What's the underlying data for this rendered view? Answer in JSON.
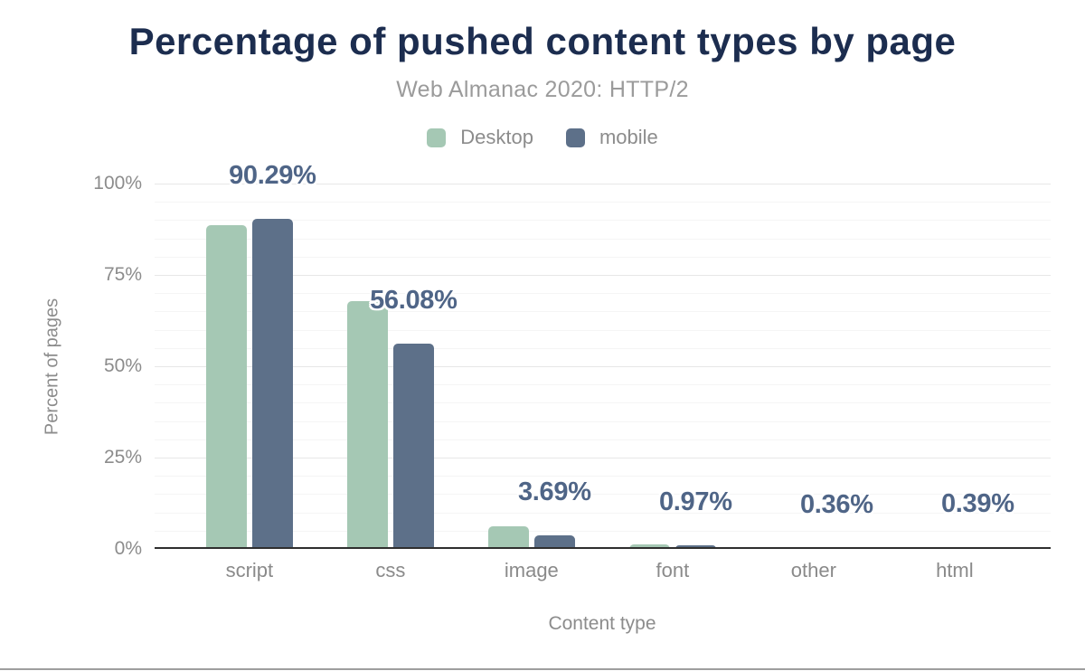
{
  "title": "Percentage of pushed content types by page",
  "subtitle": "Web Almanac 2020: HTTP/2",
  "legend": [
    {
      "label": "Desktop",
      "color": "#a5c8b4"
    },
    {
      "label": "mobile",
      "color": "#5d7089"
    }
  ],
  "axes": {
    "y_title": "Percent of pages",
    "x_title": "Content type",
    "y_ticks": [
      "0%",
      "25%",
      "50%",
      "75%",
      "100%"
    ]
  },
  "chart_data": {
    "type": "bar",
    "categories": [
      "script",
      "css",
      "image",
      "font",
      "other",
      "html"
    ],
    "series": [
      {
        "name": "Desktop",
        "color": "#a5c8b4",
        "values": [
          88.7,
          67.7,
          6.1,
          1.3,
          0.55,
          0.55
        ]
      },
      {
        "name": "mobile",
        "color": "#5d7089",
        "values": [
          90.29,
          56.08,
          3.69,
          0.97,
          0.36,
          0.39
        ]
      }
    ],
    "annotations": [
      "90.29%",
      "56.08%",
      "3.69%",
      "0.97%",
      "0.36%",
      "0.39%"
    ],
    "annotation_series": "mobile",
    "title": "Percentage of pushed content types by page",
    "subtitle": "Web Almanac 2020: HTTP/2",
    "xlabel": "Content type",
    "ylabel": "Percent of pages",
    "ylim": [
      0,
      100
    ],
    "grid": true,
    "gridline_minor_step": 5,
    "gridline_major_step": 25,
    "legend_position": "top"
  },
  "colors": {
    "title_text": "#1c2d4f",
    "annotation_text": "#4f6587",
    "axis_text": "#8c8c8c",
    "axis_line": "#2f2f2f",
    "gridline_minor": "#f5f5f5",
    "gridline_major": "#e7e7e7",
    "desktop_bar": "#a5c8b4",
    "mobile_bar": "#5d7089"
  }
}
